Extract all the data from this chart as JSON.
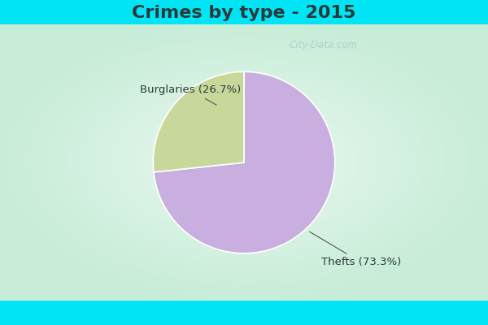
{
  "title": "Crimes by type - 2015",
  "slices": [
    {
      "label": "Thefts (73.3%)",
      "value": 73.3,
      "color": "#c9aee0"
    },
    {
      "label": "Burglaries (26.7%)",
      "value": 26.7,
      "color": "#c8d89a"
    }
  ],
  "bg_color_cyan": "#00e5f5",
  "bg_color_main_topleft": "#c8edd8",
  "bg_color_main_center": "#e8f8ee",
  "title_fontsize": 16,
  "title_color": "#2a3a3a",
  "label_fontsize": 9.5,
  "watermark": "City-Data.com",
  "cyan_bar_height": 0.075
}
